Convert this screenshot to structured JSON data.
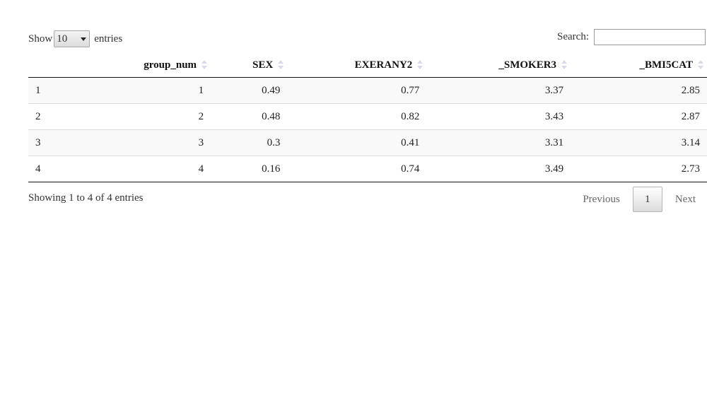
{
  "length_menu": {
    "show_label": "Show",
    "selected": "10",
    "entries_label": "entries"
  },
  "search": {
    "label": "Search:",
    "value": ""
  },
  "table": {
    "columns": [
      "",
      "group_num",
      "SEX",
      "EXERANY2",
      "_SMOKER3",
      "_BMI5CAT"
    ],
    "rows": [
      [
        "1",
        "1",
        "0.49",
        "0.77",
        "3.37",
        "2.85"
      ],
      [
        "2",
        "2",
        "0.48",
        "0.82",
        "3.43",
        "2.87"
      ],
      [
        "3",
        "3",
        "0.3",
        "0.41",
        "3.31",
        "3.14"
      ],
      [
        "4",
        "4",
        "0.16",
        "0.74",
        "3.49",
        "2.73"
      ]
    ]
  },
  "info": "Showing 1 to 4 of 4 entries",
  "pagination": {
    "previous": "Previous",
    "current": "1",
    "next": "Next"
  }
}
